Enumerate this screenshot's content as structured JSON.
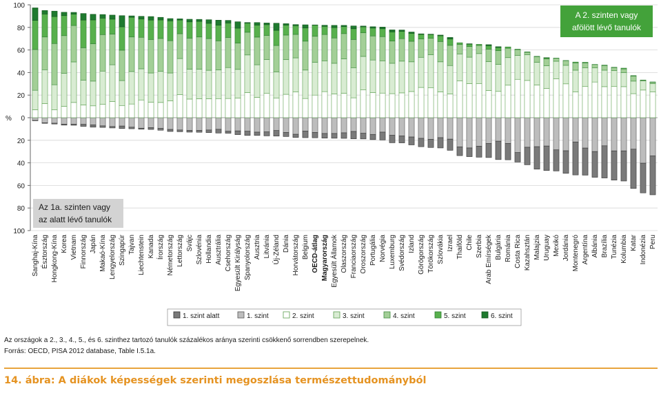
{
  "chart_data": {
    "type": "bar",
    "stacked": true,
    "diverging": true,
    "y_axis_unit": "%",
    "y_ticks": [
      "100",
      "80",
      "60",
      "40",
      "20",
      "0",
      "20",
      "40",
      "60",
      "80",
      "100"
    ],
    "ylim": [
      -100,
      100
    ],
    "grid": true,
    "legend_position": "bottom",
    "categories": [
      "Sanghaj-Kína",
      "Észtország",
      "Hongkong-Kína",
      "Korea",
      "Vietnam",
      "Finnország",
      "Japán",
      "Makaó-Kína",
      "Lengyelország",
      "Szingapúr",
      "Tajvan",
      "Liechtenstein",
      "Kanada",
      "Írország",
      "Németország",
      "Lettország",
      "Svájc",
      "Szlovénia",
      "Hollandia",
      "Ausztrália",
      "Csehország",
      "Egyesült Királyság",
      "Spanyolország",
      "Ausztria",
      "Litvánia",
      "Új-Zéland",
      "Dánia",
      "Horvátország",
      "Belgium",
      "OECD-átlag",
      "Magyarország",
      "Egyesült Államok",
      "Olaszország",
      "Franciaország",
      "Oroszország",
      "Portugália",
      "Norvégia",
      "Luxemburg",
      "Svédország",
      "Izland",
      "Görögország",
      "Törökország",
      "Szlovákia",
      "Izrael",
      "Thaiföld",
      "Chile",
      "Szerbia",
      "Arab Emírségek",
      "Bulgária",
      "Románia",
      "Costa Rica",
      "Kazahsztán",
      "Malajzia",
      "Uruguay",
      "Mexikó",
      "Jordánia",
      "Montenegró",
      "Argentína",
      "Albánia",
      "Brazília",
      "Tunézia",
      "Kolumbia",
      "Katar",
      "Indonézia",
      "Peru"
    ],
    "bold_categories": [
      "OECD-átlag",
      "Magyarország"
    ],
    "above_total": [
      97.3,
      95.0,
      94.4,
      93.4,
      93.3,
      92.3,
      91.6,
      91.4,
      90.9,
      90.4,
      90.2,
      89.8,
      89.6,
      88.9,
      87.8,
      87.6,
      87.2,
      87.1,
      86.8,
      86.4,
      86.2,
      85.0,
      84.3,
      84.3,
      83.9,
      83.7,
      83.3,
      82.5,
      82.3,
      82.2,
      81.9,
      81.8,
      81.7,
      81.3,
      81.2,
      80.6,
      80.3,
      77.8,
      77.7,
      75.9,
      74.3,
      73.6,
      73.2,
      71.1,
      66.4,
      65.5,
      65.0,
      64.7,
      62.9,
      62.7,
      60.7,
      58.3,
      54.4,
      53.2,
      52.8,
      50.7,
      49.3,
      49.1,
      47.2,
      46.6,
      44.7,
      43.9,
      37.3,
      33.4,
      31.7
    ],
    "below_1a_alatt": [
      0.3,
      0.5,
      0.7,
      0.8,
      0.9,
      1.8,
      2.0,
      1.4,
      1.3,
      2.2,
      1.4,
      0.9,
      1.6,
      1.6,
      1.8,
      1.5,
      1.6,
      1.6,
      2.3,
      3.3,
      1.8,
      3.3,
      3.7,
      2.9,
      3.5,
      4.9,
      3.6,
      2.8,
      5.8,
      4.8,
      4.1,
      4.2,
      4.9,
      6.5,
      5.0,
      4.6,
      6.9,
      6.6,
      6.1,
      7.0,
      7.4,
      7.3,
      9.1,
      9.9,
      7.8,
      7.7,
      9.7,
      12.4,
      16.3,
      14.5,
      8.4,
      15.5,
      19.9,
      21.7,
      18.7,
      20.0,
      29.2,
      24.0,
      22.8,
      28.5,
      25.9,
      26.7,
      34.8,
      26.3,
      34.4
    ],
    "below_1a": [
      2.4,
      4.5,
      4.9,
      5.8,
      5.8,
      5.9,
      6.4,
      7.2,
      7.8,
      7.4,
      8.4,
      9.3,
      8.8,
      9.5,
      10.4,
      10.9,
      11.2,
      11.3,
      10.9,
      10.3,
      12.0,
      11.7,
      12.0,
      12.8,
      12.6,
      11.4,
      13.1,
      14.7,
      11.9,
      13.0,
      14.0,
      14.0,
      13.4,
      12.2,
      13.8,
      14.8,
      12.8,
      15.6,
      16.2,
      17.1,
      18.3,
      19.1,
      17.7,
      19.0,
      25.8,
      26.8,
      25.3,
      22.9,
      20.8,
      22.8,
      30.9,
      26.2,
      25.7,
      25.1,
      28.5,
      29.3,
      21.5,
      26.9,
      30.0,
      24.9,
      29.4,
      29.4,
      27.9,
      40.3,
      33.9
    ],
    "above_2": [
      7.0,
      12.5,
      7.1,
      10.1,
      13.5,
      11.3,
      10.5,
      11.8,
      14.3,
      10.8,
      12.1,
      15.7,
      13.8,
      13.5,
      14.9,
      20.5,
      16.5,
      16.8,
      16.8,
      16.9,
      17.0,
      17.3,
      22.3,
      18.0,
      21.5,
      17.5,
      20.7,
      22.8,
      17.0,
      20.0,
      23.1,
      21.1,
      21.7,
      17.6,
      24.8,
      22.3,
      21.8,
      21.3,
      22.0,
      23.2,
      26.8,
      26.4,
      22.9,
      21.1,
      32.7,
      30.2,
      30.3,
      24.1,
      23.3,
      28.8,
      34.0,
      33.0,
      29.0,
      26.0,
      34.4,
      30.0,
      22.8,
      27.6,
      31.6,
      27.5,
      27.6,
      27.5,
      21.3,
      24.5,
      22.8
    ],
    "above_3": [
      17.3,
      30.0,
      22.1,
      29.2,
      35.9,
      22.0,
      21.9,
      29.5,
      32.6,
      22.1,
      28.8,
      27.6,
      25.8,
      27.5,
      24.7,
      31.9,
      26.5,
      26.1,
      25.2,
      25.4,
      27.4,
      25.5,
      33.3,
      28.9,
      30.1,
      23.1,
      30.7,
      30.2,
      25.2,
      29.1,
      27.3,
      27.1,
      30.4,
      26.7,
      29.5,
      28.8,
      28.6,
      26.9,
      28.1,
      26.3,
      26.7,
      29.4,
      26.6,
      25.1,
      23.8,
      23.4,
      26.5,
      25.5,
      23.9,
      24.4,
      21.1,
      22.8,
      20.0,
      20.0,
      15.6,
      16.4,
      19.3,
      16.5,
      12.6,
      14.6,
      14.1,
      12.4,
      11.1,
      8.0,
      7.4
    ],
    "above_4": [
      36.1,
      29.0,
      36.5,
      33.4,
      32.3,
      28.7,
      33.1,
      32.3,
      27.1,
      26.9,
      30.6,
      27.9,
      29.7,
      29.2,
      28.6,
      22.0,
      27.5,
      28.6,
      28.1,
      25.8,
      26.7,
      23.3,
      20.1,
      24.5,
      21.3,
      23.4,
      21.8,
      20.8,
      25.6,
      23.0,
      23.3,
      22.4,
      22.4,
      25.0,
      20.9,
      21.3,
      21.4,
      19.7,
      19.9,
      18.2,
      16.2,
      14.6,
      18.0,
      17.9,
      8.3,
      9.5,
      7.2,
      11.1,
      12.2,
      8.3,
      5.2,
      2.2,
      5.1,
      6.1,
      2.6,
      4.1,
      6.5,
      4.5,
      2.9,
      4.1,
      2.7,
      3.3,
      4.5,
      0.8,
      1.3
    ],
    "above_5": [
      25.8,
      20.3,
      23.9,
      17.7,
      10.0,
      24.5,
      21.1,
      14.6,
      13.3,
      20.7,
      17.4,
      16.2,
      17.2,
      16.4,
      17.6,
      12.1,
      14.4,
      13.8,
      13.5,
      13.9,
      12.8,
      13.2,
      8.0,
      10.6,
      9.5,
      13.4,
      8.8,
      7.7,
      11.7,
      9.9,
      7.2,
      9.2,
      6.2,
      9.5,
      5.3,
      7.0,
      7.0,
      8.1,
      6.5,
      7.0,
      4.1,
      3.3,
      5.1,
      5.6,
      1.6,
      2.1,
      1.0,
      3.1,
      2.8,
      1.2,
      0.4,
      0.3,
      0.3,
      1.0,
      0.2,
      0.2,
      0.7,
      0.5,
      0.1,
      0.4,
      0.3,
      0.7,
      0.4,
      0.1,
      0.2
    ],
    "above_6": [
      11.1,
      3.2,
      4.8,
      3.0,
      1.6,
      5.8,
      5.0,
      3.2,
      3.6,
      9.9,
      1.3,
      2.4,
      3.1,
      2.3,
      2.0,
      1.1,
      2.3,
      1.8,
      3.2,
      4.4,
      2.3,
      5.7,
      0.6,
      2.3,
      1.5,
      6.3,
      1.3,
      1.0,
      2.8,
      0.2,
      1.0,
      2.0,
      1.1,
      2.5,
      0.7,
      1.2,
      1.5,
      1.8,
      1.2,
      1.2,
      0.5,
      0.3,
      0.6,
      1.4,
      0.0,
      0.3,
      0.0,
      0.9,
      0.7,
      0.0,
      0.0,
      0.0,
      0.0,
      0.1,
      0.0,
      0.0,
      0.0,
      0.0,
      0.0,
      0.0,
      0.0,
      0.0,
      0.0,
      0.0,
      0.0
    ],
    "series_labels": [
      "1. szint alatt",
      "1. szint",
      "2. szint",
      "3. szint",
      "4. szint",
      "5. szint",
      "6. szint"
    ],
    "series_colors": [
      "#7a7a7a",
      "#bdbdbd",
      "#ffffff",
      "#d9ecd3",
      "#a3cf97",
      "#58b04d",
      "#1f7a2f"
    ],
    "series_borders": [
      "#333333",
      "#555555",
      "#5a9e4e",
      "#5a9e4e",
      "#3f8c3f",
      "#2e7d32",
      "#14551f"
    ],
    "box_top": {
      "text1": "A 2. szinten vagy",
      "text2": "afölött lévő tanulók",
      "bg": "#43a23a"
    },
    "box_bottom": {
      "text1": "Az 1a. szinten vagy",
      "text2": "az alatt lévő tanulók",
      "bg": "#d3d3d3"
    }
  },
  "notes": {
    "line1": "Az országok a 2., 3., 4., 5., és 6. szinthez tartozó tanulók százalékos aránya szerinti csökkenő sorrendben szerepelnek.",
    "line2": "Forrás: OECD, PISA 2012 database, Table I.5.1a."
  },
  "figure_title": "14. ábra: A diákok képességek szerinti megoszlása természettudományból"
}
